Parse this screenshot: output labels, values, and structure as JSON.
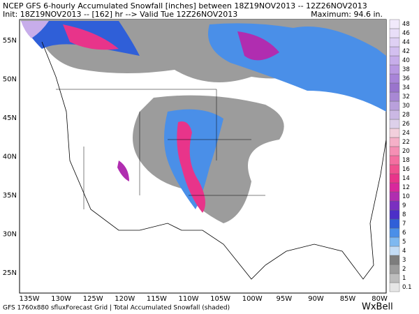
{
  "header": {
    "line1": "NCEP GFS 6-hourly Accumulated Snowfall [inches] between 18Z19NOV2013 -- 12Z26NOV2013",
    "line2": "Init: 18Z19NOV2013 --  [162] hr --> Valid Tue 12Z26NOV2013",
    "maximum": "Maximum:   94.6 in."
  },
  "map": {
    "lat_labels": [
      "55N",
      "50N",
      "45N",
      "40N",
      "35N",
      "30N",
      "25N"
    ],
    "lon_labels": [
      "135W",
      "130W",
      "125W",
      "120W",
      "115W",
      "110W",
      "105W",
      "100W",
      "95W",
      "90W",
      "85W",
      "80W"
    ]
  },
  "colorbar": {
    "levels": [
      {
        "label": "0.1",
        "color": "#e6e6e6"
      },
      {
        "label": "1",
        "color": "#bdbdbd"
      },
      {
        "label": "2",
        "color": "#9c9c9c"
      },
      {
        "label": "3",
        "color": "#7d7d7d"
      },
      {
        "label": "4",
        "color": "#c3dcf5"
      },
      {
        "label": "5",
        "color": "#7eb8f0"
      },
      {
        "label": "6",
        "color": "#4a8fe8"
      },
      {
        "label": "7",
        "color": "#2f5fd8"
      },
      {
        "label": "8",
        "color": "#4b2fc8"
      },
      {
        "label": "9",
        "color": "#7a2fc0"
      },
      {
        "label": "10",
        "color": "#b02db0"
      },
      {
        "label": "12",
        "color": "#d8289c"
      },
      {
        "label": "14",
        "color": "#e8348a"
      },
      {
        "label": "16",
        "color": "#f0508f"
      },
      {
        "label": "18",
        "color": "#f46ea0"
      },
      {
        "label": "20",
        "color": "#f58fb4"
      },
      {
        "label": "22",
        "color": "#f5b0c8"
      },
      {
        "label": "24",
        "color": "#f2cfdc"
      },
      {
        "label": "26",
        "color": "#ddd0ea"
      },
      {
        "label": "28",
        "color": "#cbb8e4"
      },
      {
        "label": "30",
        "color": "#b9a0dc"
      },
      {
        "label": "32",
        "color": "#a888d4"
      },
      {
        "label": "34",
        "color": "#9a74cc"
      },
      {
        "label": "36",
        "color": "#a884d8"
      },
      {
        "label": "38",
        "color": "#b898e2"
      },
      {
        "label": "40",
        "color": "#c7adea"
      },
      {
        "label": "42",
        "color": "#d3bff0"
      },
      {
        "label": "44",
        "color": "#dfd0f4"
      },
      {
        "label": "46",
        "color": "#e9def8"
      },
      {
        "label": "48",
        "color": "#f1e9fb"
      }
    ]
  },
  "footer": {
    "text": "GFS 1760x880 sfluxForecast Grid | Total Accumulated Snowfall (shaded)",
    "logo": "WxBell"
  }
}
